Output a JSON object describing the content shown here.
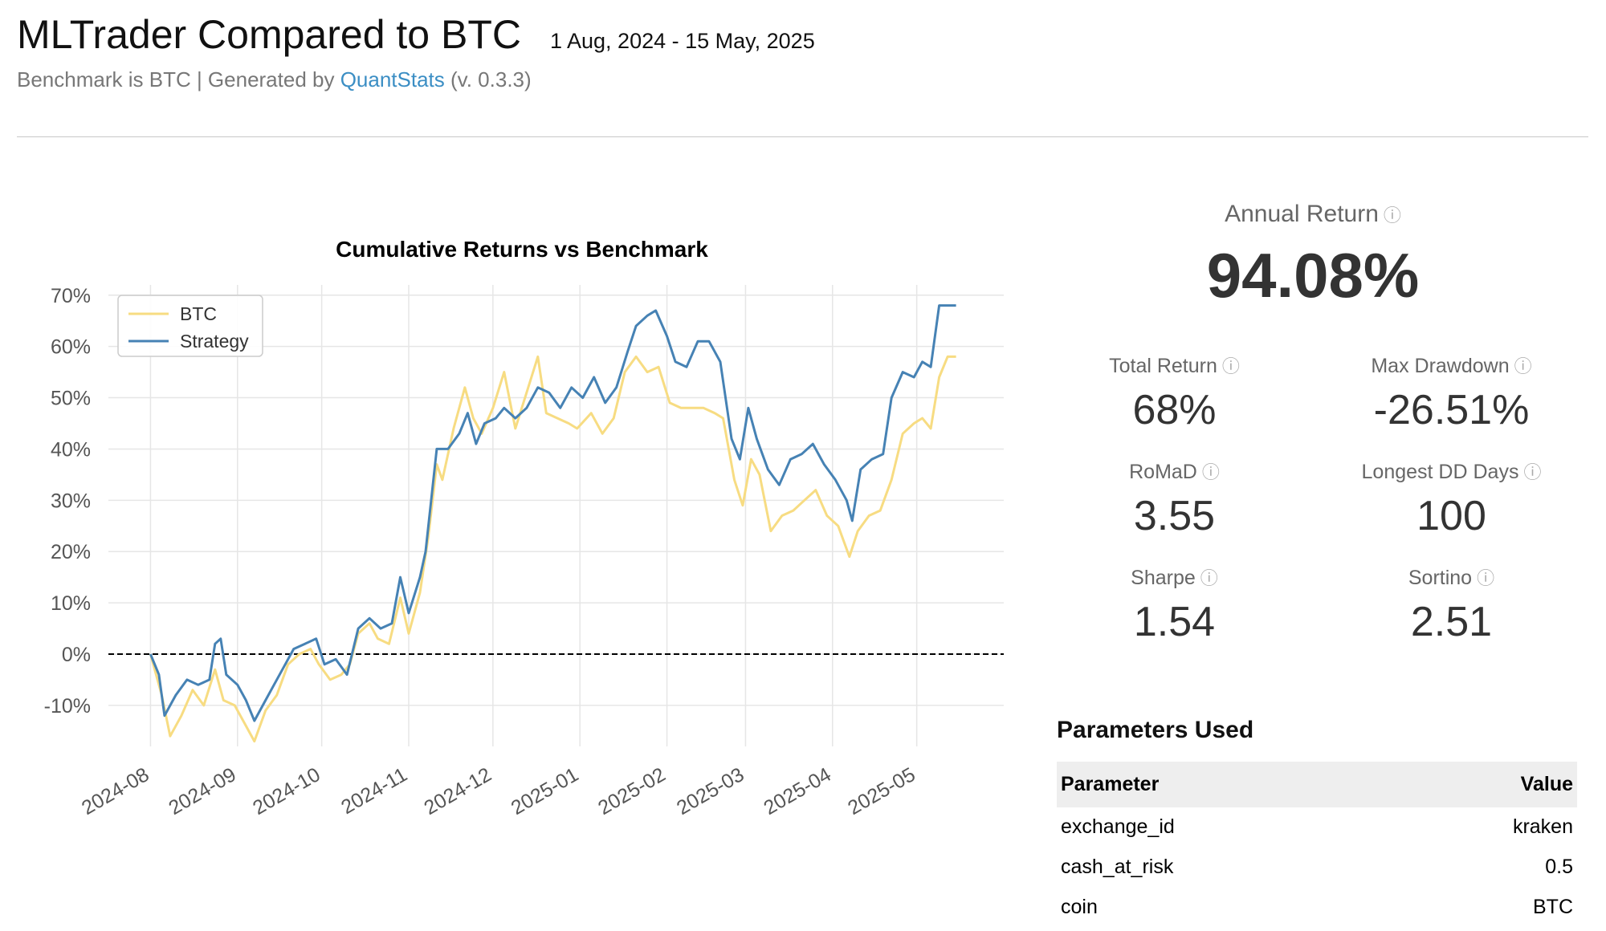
{
  "header": {
    "title": "MLTrader Compared to BTC",
    "date_range": "1 Aug, 2024 - 15 May, 2025",
    "subtitle_prefix": "Benchmark is BTC | Generated by ",
    "subtitle_link": "QuantStats",
    "subtitle_suffix": " (v. 0.3.3)"
  },
  "kpis": {
    "info_glyph": "ⓘ",
    "annual_return": {
      "label": "Annual Return",
      "value": "94.08%"
    },
    "metrics": [
      {
        "label": "Total Return",
        "value": "68%"
      },
      {
        "label": "Max Drawdown",
        "value": "-26.51%"
      },
      {
        "label": "RoMaD",
        "value": "3.55"
      },
      {
        "label": "Longest DD Days",
        "value": "100"
      },
      {
        "label": "Sharpe",
        "value": "1.54"
      },
      {
        "label": "Sortino",
        "value": "2.51"
      }
    ]
  },
  "parameters": {
    "title": "Parameters Used",
    "headers": {
      "parameter": "Parameter",
      "value": "Value"
    },
    "rows": [
      {
        "name": "exchange_id",
        "value": "kraken"
      },
      {
        "name": "cash_at_risk",
        "value": "0.5"
      },
      {
        "name": "coin",
        "value": "BTC"
      }
    ]
  },
  "chart_data": {
    "type": "line",
    "title": "Cumulative Returns vs Benchmark",
    "xlabel": "",
    "ylabel": "",
    "y_ticks": [
      -10,
      0,
      10,
      20,
      30,
      40,
      50,
      60,
      70
    ],
    "y_tick_labels": [
      "-10%",
      "0%",
      "10%",
      "20%",
      "30%",
      "40%",
      "50%",
      "60%",
      "70%"
    ],
    "ylim": [
      -18,
      72
    ],
    "x_ticks": [
      "2024-08",
      "2024-09",
      "2024-10",
      "2024-11",
      "2024-12",
      "2025-01",
      "2025-02",
      "2025-03",
      "2025-04",
      "2025-05"
    ],
    "xlim": [
      "2024-07-17",
      "2025-06-01"
    ],
    "grid": true,
    "legend_position": "top-left",
    "zero_line": true,
    "colors": {
      "BTC": "#f7dc82",
      "Strategy": "#4682b4"
    },
    "series": [
      {
        "name": "BTC",
        "points": [
          [
            "2024-08-01",
            0
          ],
          [
            "2024-08-05",
            -8
          ],
          [
            "2024-08-08",
            -16
          ],
          [
            "2024-08-12",
            -12
          ],
          [
            "2024-08-16",
            -7
          ],
          [
            "2024-08-20",
            -10
          ],
          [
            "2024-08-24",
            -3
          ],
          [
            "2024-08-27",
            -9
          ],
          [
            "2024-08-31",
            -10
          ],
          [
            "2024-09-04",
            -14
          ],
          [
            "2024-09-07",
            -17
          ],
          [
            "2024-09-11",
            -11
          ],
          [
            "2024-09-15",
            -8
          ],
          [
            "2024-09-19",
            -2
          ],
          [
            "2024-09-23",
            0
          ],
          [
            "2024-09-27",
            1
          ],
          [
            "2024-09-30",
            -2
          ],
          [
            "2024-10-04",
            -5
          ],
          [
            "2024-10-08",
            -4
          ],
          [
            "2024-10-11",
            -2
          ],
          [
            "2024-10-14",
            4
          ],
          [
            "2024-10-18",
            6
          ],
          [
            "2024-10-21",
            3
          ],
          [
            "2024-10-25",
            2
          ],
          [
            "2024-10-29",
            11
          ],
          [
            "2024-11-01",
            4
          ],
          [
            "2024-11-05",
            12
          ],
          [
            "2024-11-08",
            23
          ],
          [
            "2024-11-11",
            37
          ],
          [
            "2024-11-13",
            34
          ],
          [
            "2024-11-17",
            44
          ],
          [
            "2024-11-21",
            52
          ],
          [
            "2024-11-24",
            46
          ],
          [
            "2024-11-27",
            43
          ],
          [
            "2024-12-01",
            48
          ],
          [
            "2024-12-05",
            55
          ],
          [
            "2024-12-09",
            44
          ],
          [
            "2024-12-13",
            51
          ],
          [
            "2024-12-17",
            58
          ],
          [
            "2024-12-20",
            47
          ],
          [
            "2024-12-24",
            46
          ],
          [
            "2024-12-28",
            45
          ],
          [
            "2024-12-31",
            44
          ],
          [
            "2025-01-05",
            47
          ],
          [
            "2025-01-09",
            43
          ],
          [
            "2025-01-13",
            46
          ],
          [
            "2025-01-17",
            55
          ],
          [
            "2025-01-21",
            58
          ],
          [
            "2025-01-25",
            55
          ],
          [
            "2025-01-29",
            56
          ],
          [
            "2025-02-02",
            49
          ],
          [
            "2025-02-06",
            48
          ],
          [
            "2025-02-10",
            48
          ],
          [
            "2025-02-14",
            48
          ],
          [
            "2025-02-18",
            47
          ],
          [
            "2025-02-21",
            46
          ],
          [
            "2025-02-25",
            34
          ],
          [
            "2025-02-28",
            29
          ],
          [
            "2025-03-03",
            38
          ],
          [
            "2025-03-06",
            35
          ],
          [
            "2025-03-10",
            24
          ],
          [
            "2025-03-14",
            27
          ],
          [
            "2025-03-18",
            28
          ],
          [
            "2025-03-22",
            30
          ],
          [
            "2025-03-26",
            32
          ],
          [
            "2025-03-30",
            27
          ],
          [
            "2025-04-03",
            25
          ],
          [
            "2025-04-07",
            19
          ],
          [
            "2025-04-10",
            24
          ],
          [
            "2025-04-14",
            27
          ],
          [
            "2025-04-18",
            28
          ],
          [
            "2025-04-22",
            34
          ],
          [
            "2025-04-26",
            43
          ],
          [
            "2025-04-30",
            45
          ],
          [
            "2025-05-03",
            46
          ],
          [
            "2025-05-06",
            44
          ],
          [
            "2025-05-09",
            54
          ],
          [
            "2025-05-12",
            58
          ],
          [
            "2025-05-15",
            58
          ]
        ]
      },
      {
        "name": "Strategy",
        "points": [
          [
            "2024-08-01",
            0
          ],
          [
            "2024-08-04",
            -4
          ],
          [
            "2024-08-06",
            -12
          ],
          [
            "2024-08-10",
            -8
          ],
          [
            "2024-08-14",
            -5
          ],
          [
            "2024-08-18",
            -6
          ],
          [
            "2024-08-22",
            -5
          ],
          [
            "2024-08-24",
            2
          ],
          [
            "2024-08-26",
            3
          ],
          [
            "2024-08-28",
            -4
          ],
          [
            "2024-09-01",
            -6
          ],
          [
            "2024-09-04",
            -9
          ],
          [
            "2024-09-07",
            -13
          ],
          [
            "2024-09-11",
            -9
          ],
          [
            "2024-09-14",
            -6
          ],
          [
            "2024-09-18",
            -2
          ],
          [
            "2024-09-21",
            1
          ],
          [
            "2024-09-25",
            2
          ],
          [
            "2024-09-29",
            3
          ],
          [
            "2024-10-02",
            -2
          ],
          [
            "2024-10-06",
            -1
          ],
          [
            "2024-10-10",
            -4
          ],
          [
            "2024-10-14",
            5
          ],
          [
            "2024-10-18",
            7
          ],
          [
            "2024-10-22",
            5
          ],
          [
            "2024-10-26",
            6
          ],
          [
            "2024-10-29",
            15
          ],
          [
            "2024-11-01",
            8
          ],
          [
            "2024-11-05",
            15
          ],
          [
            "2024-11-07",
            20
          ],
          [
            "2024-11-11",
            40
          ],
          [
            "2024-11-15",
            40
          ],
          [
            "2024-11-19",
            43
          ],
          [
            "2024-11-22",
            47
          ],
          [
            "2024-11-25",
            41
          ],
          [
            "2024-11-28",
            45
          ],
          [
            "2024-12-02",
            46
          ],
          [
            "2024-12-05",
            48
          ],
          [
            "2024-12-09",
            46
          ],
          [
            "2024-12-13",
            48
          ],
          [
            "2024-12-17",
            52
          ],
          [
            "2024-12-21",
            51
          ],
          [
            "2024-12-25",
            48
          ],
          [
            "2024-12-29",
            52
          ],
          [
            "2025-01-02",
            50
          ],
          [
            "2025-01-06",
            54
          ],
          [
            "2025-01-10",
            49
          ],
          [
            "2025-01-14",
            52
          ],
          [
            "2025-01-18",
            59
          ],
          [
            "2025-01-21",
            64
          ],
          [
            "2025-01-25",
            66
          ],
          [
            "2025-01-28",
            67
          ],
          [
            "2025-02-01",
            62
          ],
          [
            "2025-02-04",
            57
          ],
          [
            "2025-02-08",
            56
          ],
          [
            "2025-02-12",
            61
          ],
          [
            "2025-02-16",
            61
          ],
          [
            "2025-02-20",
            57
          ],
          [
            "2025-02-24",
            42
          ],
          [
            "2025-02-27",
            38
          ],
          [
            "2025-03-02",
            48
          ],
          [
            "2025-03-05",
            42
          ],
          [
            "2025-03-09",
            36
          ],
          [
            "2025-03-13",
            33
          ],
          [
            "2025-03-17",
            38
          ],
          [
            "2025-03-21",
            39
          ],
          [
            "2025-03-25",
            41
          ],
          [
            "2025-03-29",
            37
          ],
          [
            "2025-04-02",
            34
          ],
          [
            "2025-04-06",
            30
          ],
          [
            "2025-04-08",
            26
          ],
          [
            "2025-04-11",
            36
          ],
          [
            "2025-04-15",
            38
          ],
          [
            "2025-04-19",
            39
          ],
          [
            "2025-04-22",
            50
          ],
          [
            "2025-04-26",
            55
          ],
          [
            "2025-04-30",
            54
          ],
          [
            "2025-05-03",
            57
          ],
          [
            "2025-05-06",
            56
          ],
          [
            "2025-05-09",
            68
          ],
          [
            "2025-05-12",
            68
          ],
          [
            "2025-05-15",
            68
          ]
        ]
      }
    ]
  }
}
